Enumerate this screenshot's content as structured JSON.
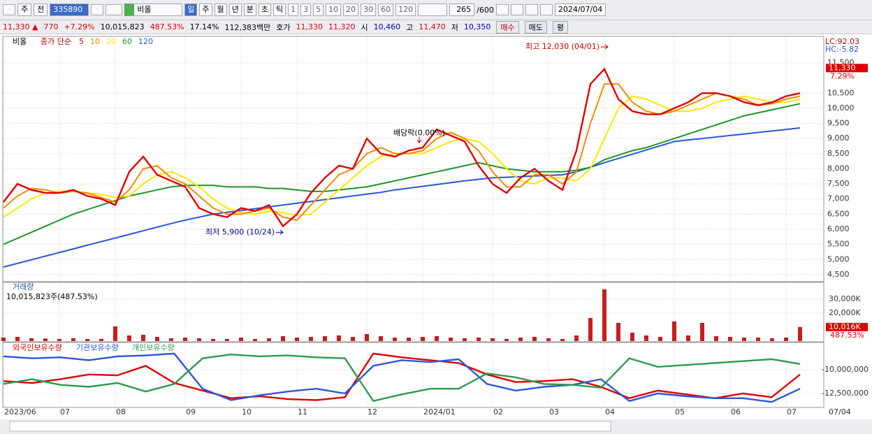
{
  "toolbar": {
    "selects": [
      "주",
      "전"
    ],
    "code": "335890",
    "name": "비올",
    "periods": [
      "일",
      "주",
      "월",
      "년",
      "분",
      "초",
      "틱"
    ],
    "minutes": [
      "1",
      "3",
      "5",
      "10",
      "20",
      "30",
      "60",
      "120"
    ],
    "count": "265",
    "max": "/600",
    "date": "2024/07/04"
  },
  "quote": [
    {
      "text": "11,330 ▲",
      "color": "#e00000"
    },
    {
      "text": "770",
      "color": "#e00000"
    },
    {
      "text": "+7.29%",
      "color": "#e00000"
    },
    {
      "text": "10,015,823",
      "color": "#000000"
    },
    {
      "text": "487.53%",
      "color": "#e00000"
    },
    {
      "text": "17.14%",
      "color": "#000000"
    },
    {
      "text": "112,383백만",
      "color": "#000000"
    },
    {
      "text": "호가",
      "color": "#000000"
    },
    {
      "text": "11,330",
      "color": "#e00000"
    },
    {
      "text": "11,320",
      "color": "#e00000"
    },
    {
      "text": "시",
      "color": "#000000"
    },
    {
      "text": "10,460",
      "color": "#0000c0"
    },
    {
      "text": "고",
      "color": "#000000"
    },
    {
      "text": "11,470",
      "color": "#e00000"
    },
    {
      "text": "저",
      "color": "#000000"
    },
    {
      "text": "10,350",
      "color": "#0000c0"
    }
  ],
  "buttons": [
    "매수",
    "매도",
    "평"
  ],
  "chart_data": [
    {
      "type": "line",
      "legend_name": "비올",
      "legend_label": "종가 단순",
      "categories": [
        "2023/06",
        null,
        null,
        null,
        "07",
        null,
        null,
        null,
        "08",
        null,
        null,
        null,
        null,
        "09",
        null,
        null,
        null,
        "10",
        null,
        null,
        null,
        "11",
        null,
        null,
        null,
        null,
        "12",
        null,
        null,
        null,
        "2024/01",
        null,
        null,
        null,
        null,
        "02",
        null,
        null,
        null,
        "03",
        null,
        null,
        null,
        "04",
        null,
        null,
        null,
        null,
        "05",
        null,
        null,
        null,
        "06",
        null,
        null,
        null,
        "07",
        null
      ],
      "last_date": "07/04",
      "series": [
        {
          "name": "5",
          "color": "#e00000",
          "values": [
            6900,
            7500,
            7300,
            7200,
            7200,
            7300,
            7100,
            7000,
            6800,
            7900,
            8400,
            7800,
            7600,
            7400,
            6700,
            6500,
            6400,
            6700,
            6600,
            6800,
            6100,
            6500,
            7200,
            7700,
            8100,
            8000,
            9000,
            8500,
            8400,
            8600,
            8700,
            9300,
            9100,
            8900,
            8100,
            7500,
            7200,
            7700,
            8000,
            7600,
            7300,
            8600,
            10800,
            11300,
            10300,
            9900,
            9800,
            9800,
            10000,
            10200,
            10500,
            10500,
            10400,
            10200,
            10100,
            10200,
            10400,
            10500
          ]
        },
        {
          "name": "10",
          "color": "#f08c00",
          "values": [
            6700,
            7100,
            7350,
            7300,
            7200,
            7250,
            7200,
            7050,
            6900,
            7300,
            8000,
            8100,
            7700,
            7500,
            7100,
            6700,
            6500,
            6500,
            6600,
            6700,
            6400,
            6300,
            6800,
            7300,
            7800,
            8000,
            8500,
            8700,
            8500,
            8500,
            8600,
            9000,
            9200,
            9000,
            8600,
            7900,
            7400,
            7400,
            7800,
            7800,
            7500,
            7900,
            9500,
            10800,
            10800,
            10200,
            9900,
            9800,
            9900,
            10100,
            10300,
            10500,
            10400,
            10300,
            10100,
            10150,
            10300,
            10400
          ]
        },
        {
          "name": "20",
          "color": "#ffe600",
          "values": [
            6400,
            6700,
            7000,
            7200,
            7250,
            7250,
            7200,
            7150,
            7050,
            7100,
            7500,
            7800,
            7900,
            7700,
            7400,
            7000,
            6700,
            6550,
            6500,
            6600,
            6550,
            6450,
            6500,
            6900,
            7300,
            7700,
            8100,
            8400,
            8500,
            8500,
            8500,
            8700,
            8900,
            9000,
            8900,
            8500,
            8000,
            7600,
            7500,
            7700,
            7700,
            7600,
            8000,
            9000,
            10000,
            10400,
            10300,
            10100,
            9900,
            9900,
            10000,
            10200,
            10300,
            10400,
            10300,
            10200,
            10200,
            10300
          ]
        },
        {
          "name": "60",
          "color": "#1e9628",
          "values": [
            5500,
            5700,
            5900,
            6100,
            6300,
            6500,
            6650,
            6800,
            6950,
            7100,
            7200,
            7300,
            7400,
            7450,
            7450,
            7450,
            7400,
            7400,
            7400,
            7350,
            7350,
            7300,
            7250,
            7250,
            7300,
            7350,
            7400,
            7500,
            7600,
            7700,
            7800,
            7900,
            8000,
            8100,
            8200,
            8100,
            8000,
            7950,
            7900,
            7900,
            7900,
            7950,
            8050,
            8300,
            8450,
            8600,
            8700,
            8850,
            9000,
            9150,
            9300,
            9450,
            9600,
            9750,
            9850,
            9950,
            10050,
            10150
          ]
        },
        {
          "name": "120",
          "color": "#2a56e0",
          "values": [
            4750,
            4870,
            4990,
            5110,
            5230,
            5350,
            5470,
            5590,
            5710,
            5830,
            5950,
            6070,
            6190,
            6300,
            6400,
            6500,
            6560,
            6620,
            6680,
            6740,
            6800,
            6860,
            6920,
            6980,
            7040,
            7100,
            7160,
            7220,
            7300,
            7360,
            7420,
            7480,
            7540,
            7600,
            7650,
            7700,
            7720,
            7740,
            7760,
            7780,
            7800,
            7900,
            8050,
            8200,
            8340,
            8480,
            8620,
            8760,
            8900,
            8950,
            9000,
            9050,
            9100,
            9150,
            9200,
            9250,
            9300,
            9350
          ]
        }
      ],
      "ylim": [
        4290,
        12355
      ],
      "yticks": [
        {
          "value": 11500,
          "label": "11,500"
        },
        {
          "value": 10500,
          "label": "10,500"
        },
        {
          "value": 10000,
          "label": "10,000"
        },
        {
          "value": 9500,
          "label": "9,500"
        },
        {
          "value": 9000,
          "label": "9,000"
        },
        {
          "value": 8500,
          "label": "8,500"
        },
        {
          "value": 8000,
          "label": "8,000"
        },
        {
          "value": 7500,
          "label": "7,500"
        },
        {
          "value": 7000,
          "label": "7,000"
        },
        {
          "value": 6500,
          "label": "6,500"
        },
        {
          "value": 6000,
          "label": "6,000"
        },
        {
          "value": 5500,
          "label": "5,500"
        },
        {
          "value": 5000,
          "label": "5,000"
        },
        {
          "value": 4500,
          "label": "4,500"
        }
      ],
      "grid": true,
      "current": {
        "value": 11330,
        "label": "11,330"
      },
      "change": "7.29%",
      "lc": "LC:92.03",
      "hc": "HC:-5.82",
      "annotations": [
        {
          "text": "최고 12,030 (04/01)",
          "value": 12030
        },
        {
          "text": "최저 5,900 (10/24)",
          "value": 5900
        },
        {
          "text": "배당락(0.00%)",
          "value": 8950
        }
      ]
    },
    {
      "type": "bar",
      "title": "거래량",
      "subtitle": "10,015,823주(487.53%)",
      "color": "#c81e1e",
      "values": [
        2500,
        3000,
        2000,
        1800,
        1500,
        2000,
        1500,
        1500,
        10500,
        4000,
        4500,
        3000,
        2000,
        2500,
        2000,
        1500,
        1500,
        2500,
        1500,
        2000,
        3500,
        2500,
        3000,
        3500,
        4000,
        3000,
        5000,
        3500,
        2500,
        2500,
        3000,
        3500,
        2500,
        2000,
        2500,
        2000,
        1500,
        2500,
        3000,
        2000,
        1500,
        4000,
        16500,
        37000,
        13000,
        6000,
        4000,
        3000,
        14000,
        4000,
        13000,
        3500,
        3000,
        2500,
        2500,
        2000,
        2500,
        10016
      ],
      "ylim": [
        0,
        41500
      ],
      "yticks": [
        {
          "value": 30000,
          "label": "30,000K"
        },
        {
          "value": 20000,
          "label": "20,000K"
        }
      ],
      "grid": true,
      "current": {
        "value": 10016,
        "label": "10,016K"
      },
      "change": "487.53%"
    },
    {
      "type": "line",
      "series": [
        {
          "name": "외국인보유수량",
          "color": "#e00000",
          "values": [
            -11200000,
            -11400000,
            -11000000,
            -10500000,
            -10600000,
            -9600000,
            -11400000,
            -12200000,
            -13000000,
            -12800000,
            -13100000,
            -13200000,
            -12900000,
            -8300000,
            -8700000,
            -9000000,
            -9300000,
            -10500000,
            -11300000,
            -11200000,
            -11000000,
            -11800000,
            -13000000,
            -12200000,
            -12600000,
            -13000000,
            -12500000,
            -12900000,
            -10500000
          ]
        },
        {
          "name": "기관보유수량",
          "color": "#2a56e0",
          "values": [
            -8600000,
            -8800000,
            -8700000,
            -9000000,
            -8600000,
            -8500000,
            -8300000,
            -12000000,
            -13200000,
            -12700000,
            -12300000,
            -12000000,
            -12500000,
            -9600000,
            -9000000,
            -9200000,
            -8900000,
            -11500000,
            -12200000,
            -11800000,
            -11600000,
            -11000000,
            -13300000,
            -12500000,
            -12800000,
            -13000000,
            -13000000,
            -13400000,
            -12000000
          ]
        },
        {
          "name": "개인보유수량",
          "color": "#2e9a50",
          "values": [
            -11500000,
            -11000000,
            -11600000,
            -11800000,
            -11400000,
            -12300000,
            -11500000,
            -8800000,
            -8400000,
            -8600000,
            -8500000,
            -8700000,
            -8800000,
            -13300000,
            -12600000,
            -12000000,
            -12000000,
            -10400000,
            -10800000,
            -11500000,
            -11600000,
            -11900000,
            -8800000,
            -9700000,
            -9500000,
            -9300000,
            -9100000,
            -8900000,
            -9400000
          ]
        }
      ],
      "ylim": [
        -13900000,
        -7280000
      ],
      "yticks": [
        {
          "value": -10000000,
          "label": "-10,000,000"
        },
        {
          "value": -12500000,
          "label": "-12,500,000"
        }
      ],
      "grid": true
    }
  ]
}
